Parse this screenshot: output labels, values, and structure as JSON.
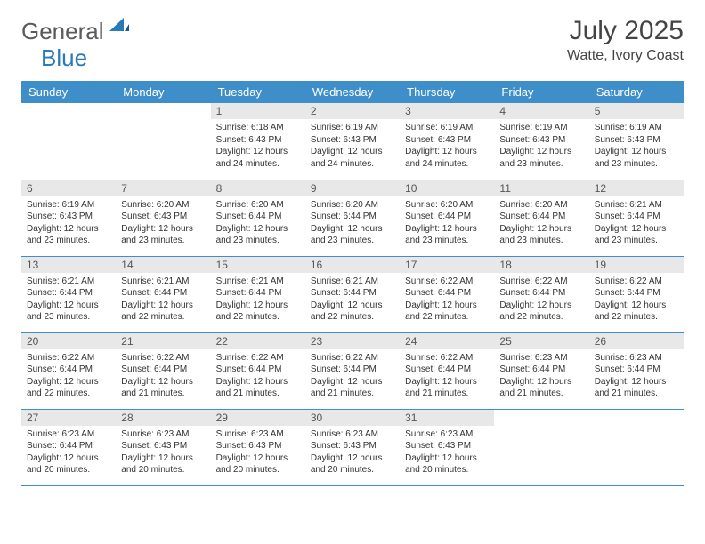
{
  "brand": {
    "part1": "General",
    "part2": "Blue",
    "accent": "#2a7ab8",
    "text_color": "#5a5a5a"
  },
  "title": "July 2025",
  "location": "Watte, Ivory Coast",
  "header_bg": "#3d8ec9",
  "daynum_bg": "#e8e8e8",
  "week_labels": [
    "Sunday",
    "Monday",
    "Tuesday",
    "Wednesday",
    "Thursday",
    "Friday",
    "Saturday"
  ],
  "cell_fontsize": 10,
  "rows": [
    [
      null,
      null,
      {
        "day": "1",
        "sunrise": "6:18 AM",
        "sunset": "6:43 PM",
        "daylight": "12 hours and 24 minutes."
      },
      {
        "day": "2",
        "sunrise": "6:19 AM",
        "sunset": "6:43 PM",
        "daylight": "12 hours and 24 minutes."
      },
      {
        "day": "3",
        "sunrise": "6:19 AM",
        "sunset": "6:43 PM",
        "daylight": "12 hours and 24 minutes."
      },
      {
        "day": "4",
        "sunrise": "6:19 AM",
        "sunset": "6:43 PM",
        "daylight": "12 hours and 23 minutes."
      },
      {
        "day": "5",
        "sunrise": "6:19 AM",
        "sunset": "6:43 PM",
        "daylight": "12 hours and 23 minutes."
      }
    ],
    [
      {
        "day": "6",
        "sunrise": "6:19 AM",
        "sunset": "6:43 PM",
        "daylight": "12 hours and 23 minutes."
      },
      {
        "day": "7",
        "sunrise": "6:20 AM",
        "sunset": "6:43 PM",
        "daylight": "12 hours and 23 minutes."
      },
      {
        "day": "8",
        "sunrise": "6:20 AM",
        "sunset": "6:44 PM",
        "daylight": "12 hours and 23 minutes."
      },
      {
        "day": "9",
        "sunrise": "6:20 AM",
        "sunset": "6:44 PM",
        "daylight": "12 hours and 23 minutes."
      },
      {
        "day": "10",
        "sunrise": "6:20 AM",
        "sunset": "6:44 PM",
        "daylight": "12 hours and 23 minutes."
      },
      {
        "day": "11",
        "sunrise": "6:20 AM",
        "sunset": "6:44 PM",
        "daylight": "12 hours and 23 minutes."
      },
      {
        "day": "12",
        "sunrise": "6:21 AM",
        "sunset": "6:44 PM",
        "daylight": "12 hours and 23 minutes."
      }
    ],
    [
      {
        "day": "13",
        "sunrise": "6:21 AM",
        "sunset": "6:44 PM",
        "daylight": "12 hours and 23 minutes."
      },
      {
        "day": "14",
        "sunrise": "6:21 AM",
        "sunset": "6:44 PM",
        "daylight": "12 hours and 22 minutes."
      },
      {
        "day": "15",
        "sunrise": "6:21 AM",
        "sunset": "6:44 PM",
        "daylight": "12 hours and 22 minutes."
      },
      {
        "day": "16",
        "sunrise": "6:21 AM",
        "sunset": "6:44 PM",
        "daylight": "12 hours and 22 minutes."
      },
      {
        "day": "17",
        "sunrise": "6:22 AM",
        "sunset": "6:44 PM",
        "daylight": "12 hours and 22 minutes."
      },
      {
        "day": "18",
        "sunrise": "6:22 AM",
        "sunset": "6:44 PM",
        "daylight": "12 hours and 22 minutes."
      },
      {
        "day": "19",
        "sunrise": "6:22 AM",
        "sunset": "6:44 PM",
        "daylight": "12 hours and 22 minutes."
      }
    ],
    [
      {
        "day": "20",
        "sunrise": "6:22 AM",
        "sunset": "6:44 PM",
        "daylight": "12 hours and 22 minutes."
      },
      {
        "day": "21",
        "sunrise": "6:22 AM",
        "sunset": "6:44 PM",
        "daylight": "12 hours and 21 minutes."
      },
      {
        "day": "22",
        "sunrise": "6:22 AM",
        "sunset": "6:44 PM",
        "daylight": "12 hours and 21 minutes."
      },
      {
        "day": "23",
        "sunrise": "6:22 AM",
        "sunset": "6:44 PM",
        "daylight": "12 hours and 21 minutes."
      },
      {
        "day": "24",
        "sunrise": "6:22 AM",
        "sunset": "6:44 PM",
        "daylight": "12 hours and 21 minutes."
      },
      {
        "day": "25",
        "sunrise": "6:23 AM",
        "sunset": "6:44 PM",
        "daylight": "12 hours and 21 minutes."
      },
      {
        "day": "26",
        "sunrise": "6:23 AM",
        "sunset": "6:44 PM",
        "daylight": "12 hours and 21 minutes."
      }
    ],
    [
      {
        "day": "27",
        "sunrise": "6:23 AM",
        "sunset": "6:44 PM",
        "daylight": "12 hours and 20 minutes."
      },
      {
        "day": "28",
        "sunrise": "6:23 AM",
        "sunset": "6:43 PM",
        "daylight": "12 hours and 20 minutes."
      },
      {
        "day": "29",
        "sunrise": "6:23 AM",
        "sunset": "6:43 PM",
        "daylight": "12 hours and 20 minutes."
      },
      {
        "day": "30",
        "sunrise": "6:23 AM",
        "sunset": "6:43 PM",
        "daylight": "12 hours and 20 minutes."
      },
      {
        "day": "31",
        "sunrise": "6:23 AM",
        "sunset": "6:43 PM",
        "daylight": "12 hours and 20 minutes."
      },
      null,
      null
    ]
  ]
}
